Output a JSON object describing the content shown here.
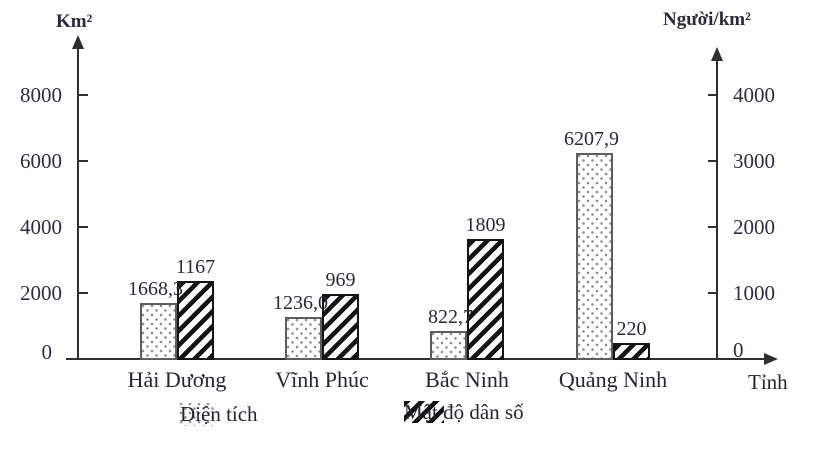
{
  "chart_data": {
    "type": "bar",
    "title": "",
    "categories": [
      "Hải Dương",
      "Vĩnh Phúc",
      "Bắc Ninh",
      "Quảng Ninh"
    ],
    "series": [
      {
        "name": "Diện tích",
        "axis": "left",
        "pattern": "dots",
        "values": [
          1668.3,
          1236.0,
          822.7,
          6207.9
        ],
        "value_labels": [
          "1668,3",
          "1236,0",
          "822,7",
          "6207,9"
        ]
      },
      {
        "name": "Mật độ dân số",
        "axis": "right",
        "pattern": "diagonal-hatch",
        "values": [
          1167,
          969,
          1809,
          220
        ],
        "value_labels": [
          "1167",
          "969",
          "1809",
          "220"
        ]
      }
    ],
    "left_axis": {
      "title": "Km²",
      "ticks": [
        0,
        2000,
        4000,
        6000,
        8000
      ],
      "max": 8000
    },
    "right_axis": {
      "title": "Người/km²",
      "ticks": [
        0,
        1000,
        2000,
        3000,
        4000
      ],
      "max": 4000
    },
    "x_axis_title": "Tỉnh",
    "legend": {
      "position": "bottom",
      "entries": [
        "Diện tích",
        "Mật độ dân số"
      ]
    },
    "grid": false,
    "colors": {
      "background": "#ffffff",
      "text": "#2a2a38",
      "axis_line": "#2f2f2f",
      "hatch": "#141414",
      "dots": "#8f8f8f"
    }
  }
}
